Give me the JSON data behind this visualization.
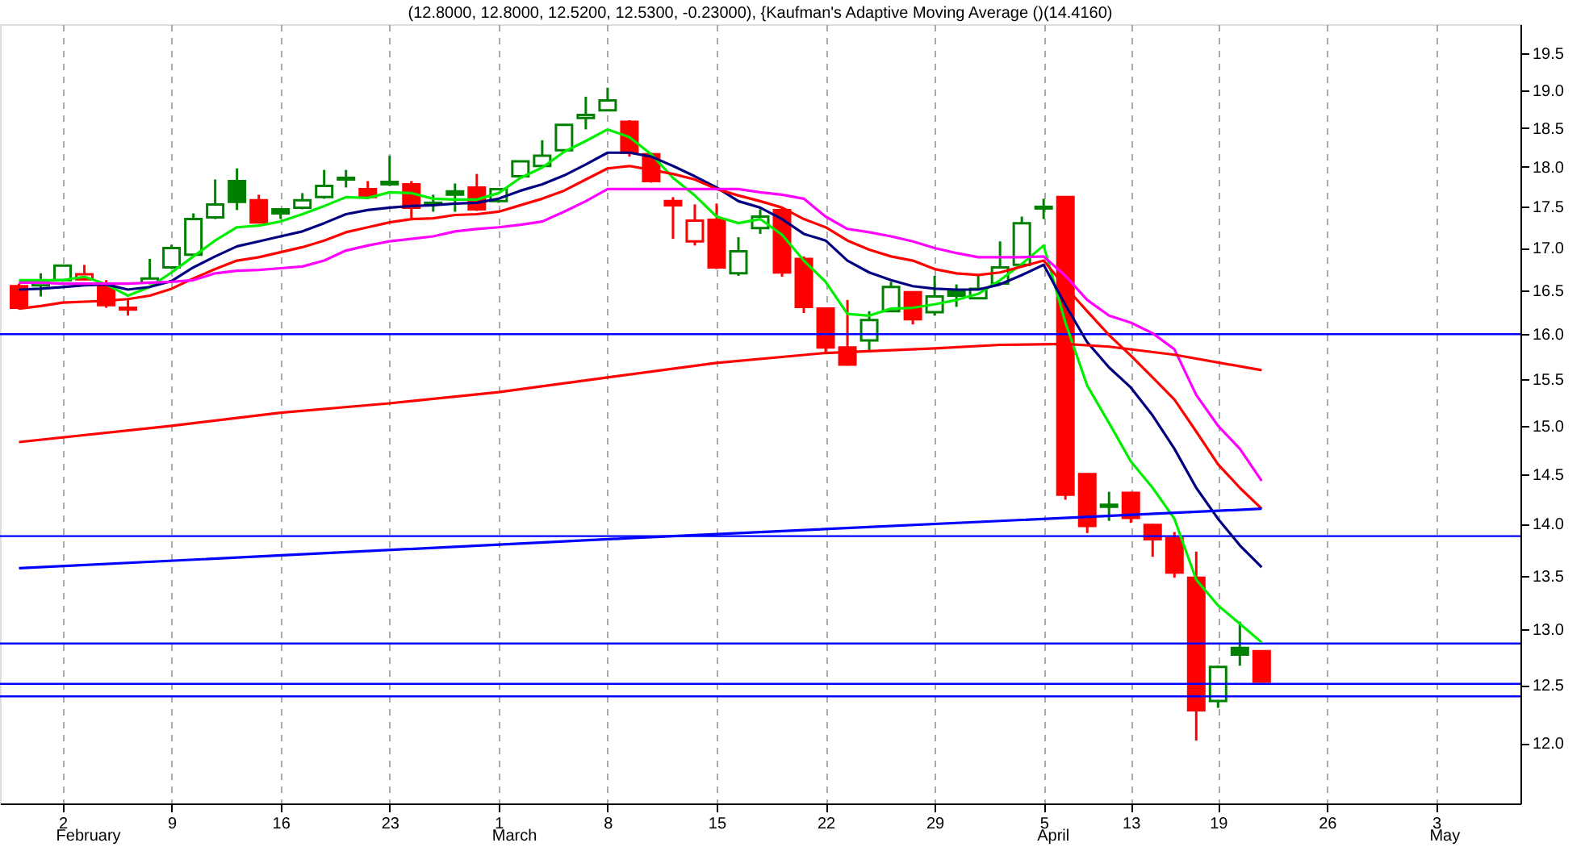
{
  "chart_data": {
    "type": "candlestick",
    "title": "(12.8000, 12.8000, 12.5200, 12.5300, -0.23000), {Kaufman's Adaptive Moving Average ()(14.4160)",
    "categories": [
      null,
      null,
      "2",
      null,
      null,
      null,
      null,
      "9",
      null,
      null,
      null,
      null,
      "16",
      null,
      null,
      null,
      null,
      "23",
      null,
      null,
      null,
      null,
      "1",
      null,
      null,
      null,
      null,
      "8",
      null,
      null,
      null,
      null,
      "15",
      null,
      null,
      null,
      null,
      "22",
      null,
      null,
      null,
      null,
      "29",
      null,
      null,
      null,
      null,
      "5",
      null,
      null,
      null,
      "13",
      null,
      null,
      null,
      "19",
      null,
      null,
      null,
      null,
      "26",
      null,
      null,
      null,
      null,
      "3",
      null,
      null,
      null
    ],
    "ohlc": [
      [
        16.55,
        16.58,
        16.28,
        16.3
      ],
      [
        16.56,
        16.7,
        16.43,
        16.6
      ],
      [
        16.62,
        16.8,
        16.6,
        16.79
      ],
      [
        16.63,
        16.8,
        16.62,
        16.69
      ],
      [
        16.55,
        16.62,
        16.3,
        16.33
      ],
      [
        16.3,
        16.41,
        16.21,
        16.28
      ],
      [
        16.59,
        16.87,
        16.57,
        16.64
      ],
      [
        16.77,
        17.04,
        16.75,
        17.0
      ],
      [
        16.92,
        17.42,
        16.9,
        17.35
      ],
      [
        17.37,
        17.84,
        17.35,
        17.53
      ],
      [
        17.82,
        17.98,
        17.46,
        17.56
      ],
      [
        17.58,
        17.65,
        17.3,
        17.31
      ],
      [
        17.47,
        17.48,
        17.35,
        17.42
      ],
      [
        17.49,
        17.67,
        17.47,
        17.58
      ],
      [
        17.62,
        17.96,
        17.6,
        17.76
      ],
      [
        17.84,
        17.96,
        17.74,
        17.86
      ],
      [
        17.72,
        17.82,
        17.6,
        17.62
      ],
      [
        17.78,
        18.14,
        17.76,
        17.81
      ],
      [
        17.78,
        17.82,
        17.36,
        17.49
      ],
      [
        17.53,
        17.65,
        17.44,
        17.55
      ],
      [
        17.69,
        17.79,
        17.44,
        17.65
      ],
      [
        17.74,
        17.91,
        17.45,
        17.47
      ],
      [
        17.57,
        17.73,
        17.55,
        17.72
      ],
      [
        17.88,
        18.08,
        17.85,
        18.07
      ],
      [
        18.01,
        18.34,
        17.98,
        18.14
      ],
      [
        18.21,
        18.55,
        18.2,
        18.54
      ],
      [
        18.63,
        18.91,
        18.48,
        18.67
      ],
      [
        18.73,
        19.03,
        18.72,
        18.86
      ],
      [
        18.58,
        18.6,
        18.13,
        18.18
      ],
      [
        18.16,
        18.18,
        17.8,
        17.82
      ],
      [
        17.57,
        17.62,
        17.11,
        17.52
      ],
      [
        17.08,
        17.53,
        17.03,
        17.33
      ],
      [
        17.34,
        17.54,
        16.75,
        16.77
      ],
      [
        16.7,
        17.13,
        16.67,
        16.96
      ],
      [
        17.24,
        17.47,
        17.17,
        17.38
      ],
      [
        17.46,
        17.48,
        16.66,
        16.71
      ],
      [
        16.87,
        16.9,
        16.24,
        16.31
      ],
      [
        16.29,
        16.3,
        15.8,
        15.85
      ],
      [
        15.85,
        16.39,
        15.65,
        15.66
      ],
      [
        15.93,
        16.26,
        15.81,
        16.16
      ],
      [
        16.26,
        16.6,
        16.25,
        16.54
      ],
      [
        16.48,
        16.49,
        16.11,
        16.17
      ],
      [
        16.25,
        16.67,
        16.21,
        16.43
      ],
      [
        16.5,
        16.57,
        16.31,
        16.44
      ],
      [
        16.41,
        16.68,
        16.4,
        16.52
      ],
      [
        16.58,
        17.08,
        16.57,
        16.77
      ],
      [
        16.8,
        17.38,
        16.78,
        17.3
      ],
      [
        17.48,
        17.6,
        17.35,
        17.5
      ],
      [
        17.62,
        17.63,
        14.24,
        14.29
      ],
      [
        14.5,
        14.5,
        13.91,
        13.98
      ],
      [
        14.17,
        14.32,
        14.03,
        14.19
      ],
      [
        14.31,
        14.32,
        14.01,
        14.06
      ],
      [
        13.99,
        14.0,
        13.68,
        13.85
      ],
      [
        13.86,
        13.92,
        13.48,
        13.53
      ],
      [
        13.48,
        13.73,
        12.02,
        12.28
      ],
      [
        12.36,
        12.67,
        12.3,
        12.66
      ],
      [
        12.83,
        13.07,
        12.67,
        12.77
      ],
      [
        12.8,
        12.8,
        12.52,
        12.53
      ],
      null,
      null,
      null,
      null,
      null,
      null,
      null,
      null,
      null,
      null,
      null
    ],
    "colors": [
      "#ff0000",
      "#008000",
      "#008000",
      "#ff0000",
      "#ff0000",
      "#ff0000",
      "#008000",
      "#008000",
      "#008000",
      "#008000",
      "#008000",
      "#ff0000",
      "#008000",
      "#008000",
      "#008000",
      "#008000",
      "#ff0000",
      "#008000",
      "#ff0000",
      "#008000",
      "#008000",
      "#ff0000",
      "#008000",
      "#008000",
      "#008000",
      "#008000",
      "#008000",
      "#008000",
      "#ff0000",
      "#ff0000",
      "#ff0000",
      "#ff0000",
      "#ff0000",
      "#008000",
      "#008000",
      "#ff0000",
      "#ff0000",
      "#ff0000",
      "#ff0000",
      "#008000",
      "#008000",
      "#ff0000",
      "#008000",
      "#008000",
      "#008000",
      "#008000",
      "#008000",
      "#008000",
      "#ff0000",
      "#ff0000",
      "#008000",
      "#ff0000",
      "#ff0000",
      "#ff0000",
      "#ff0000",
      "#008000",
      "#008000",
      "#ff0000",
      null,
      null,
      null,
      null,
      null,
      null,
      null,
      null,
      null,
      null,
      null
    ],
    "series": [
      {
        "type": "line",
        "color": "#00ee00",
        "values": [
          16.62,
          16.62,
          16.62,
          16.66,
          16.57,
          16.44,
          16.54,
          16.71,
          16.9,
          17.09,
          17.25,
          17.27,
          17.32,
          17.41,
          17.51,
          17.62,
          17.61,
          17.68,
          17.67,
          17.6,
          17.59,
          17.59,
          17.67,
          17.86,
          17.99,
          18.19,
          18.33,
          18.48,
          18.38,
          18.16,
          17.86,
          17.64,
          17.38,
          17.3,
          17.35,
          17.16,
          16.85,
          16.6,
          16.23,
          16.21,
          16.29,
          16.3,
          16.34,
          16.39,
          16.46,
          16.62,
          16.81,
          17.03,
          16.13,
          15.43,
          15.03,
          14.63,
          14.36,
          14.05,
          13.46,
          13.22,
          13.05,
          12.88,
          null,
          null,
          null,
          null,
          null,
          null,
          null,
          null,
          null,
          null,
          null
        ]
      },
      {
        "type": "line",
        "color": "#000080",
        "values": [
          16.51,
          16.52,
          16.54,
          16.56,
          16.57,
          16.51,
          16.54,
          16.61,
          16.77,
          16.9,
          17.02,
          17.08,
          17.14,
          17.2,
          17.3,
          17.41,
          17.46,
          17.49,
          17.51,
          17.52,
          17.54,
          17.55,
          17.6,
          17.7,
          17.78,
          17.89,
          18.03,
          18.18,
          18.18,
          18.13,
          18.01,
          17.88,
          17.74,
          17.57,
          17.49,
          17.35,
          17.17,
          17.09,
          16.85,
          16.71,
          16.62,
          16.55,
          16.52,
          16.51,
          16.51,
          16.57,
          16.68,
          16.8,
          16.33,
          15.91,
          15.63,
          15.41,
          15.11,
          14.76,
          14.36,
          14.05,
          13.79,
          13.58,
          null,
          null,
          null,
          null,
          null,
          null,
          null,
          null,
          null,
          null,
          null
        ]
      },
      {
        "type": "line",
        "color": "#ff0000",
        "values": [
          16.29,
          16.32,
          16.36,
          16.37,
          16.38,
          16.4,
          16.44,
          16.52,
          16.64,
          16.75,
          16.85,
          16.89,
          16.95,
          17.01,
          17.09,
          17.19,
          17.25,
          17.31,
          17.35,
          17.36,
          17.4,
          17.41,
          17.44,
          17.52,
          17.6,
          17.7,
          17.84,
          17.98,
          18.01,
          17.96,
          17.91,
          17.84,
          17.72,
          17.64,
          17.57,
          17.49,
          17.35,
          17.25,
          17.09,
          16.98,
          16.9,
          16.85,
          16.75,
          16.7,
          16.68,
          16.71,
          16.78,
          16.85,
          16.54,
          16.26,
          15.99,
          15.76,
          15.52,
          15.28,
          14.94,
          14.6,
          14.36,
          14.15,
          null,
          null,
          null,
          null,
          null,
          null,
          null,
          null,
          null,
          null,
          null
        ]
      },
      {
        "type": "line",
        "color": "#ff00ff",
        "values": [
          16.59,
          16.59,
          16.58,
          16.58,
          16.58,
          16.58,
          16.59,
          16.6,
          16.62,
          16.7,
          16.73,
          16.74,
          16.76,
          16.78,
          16.85,
          16.97,
          17.03,
          17.08,
          17.11,
          17.14,
          17.2,
          17.23,
          17.25,
          17.28,
          17.32,
          17.44,
          17.57,
          17.72,
          17.72,
          17.72,
          17.72,
          17.72,
          17.72,
          17.72,
          17.68,
          17.65,
          17.6,
          17.38,
          17.23,
          17.19,
          17.14,
          17.08,
          17.0,
          16.94,
          16.89,
          16.89,
          16.89,
          16.9,
          16.67,
          16.39,
          16.21,
          16.13,
          16.01,
          15.83,
          15.33,
          15.0,
          14.76,
          14.43,
          null,
          null,
          null,
          null,
          null,
          null,
          null,
          null,
          null,
          null,
          null
        ]
      },
      {
        "type": "line",
        "color": "#ff0000",
        "values": [
          14.83,
          null,
          null,
          null,
          null,
          null,
          null,
          15.0,
          null,
          null,
          null,
          null,
          15.14,
          null,
          null,
          null,
          null,
          15.24,
          null,
          null,
          null,
          null,
          15.36,
          null,
          null,
          null,
          null,
          15.52,
          null,
          null,
          null,
          null,
          15.68,
          null,
          null,
          null,
          null,
          15.79,
          null,
          null,
          null,
          null,
          15.84,
          null,
          null,
          15.88,
          null,
          null,
          15.89,
          null,
          15.86,
          null,
          null,
          15.77,
          null,
          null,
          null,
          15.6,
          null,
          null,
          null,
          null,
          null,
          null,
          null,
          null,
          null,
          null,
          null
        ]
      },
      {
        "type": "line",
        "color": "#0000ff",
        "values": [
          13.57,
          null,
          null,
          null,
          null,
          null,
          null,
          null,
          null,
          null,
          null,
          null,
          null,
          null,
          null,
          null,
          null,
          null,
          null,
          null,
          null,
          null,
          null,
          null,
          null,
          null,
          null,
          null,
          13.86,
          null,
          null,
          null,
          null,
          null,
          null,
          null,
          null,
          null,
          null,
          null,
          null,
          null,
          null,
          null,
          null,
          null,
          null,
          null,
          null,
          null,
          null,
          null,
          null,
          null,
          null,
          null,
          null,
          14.15,
          null,
          null,
          null,
          null,
          null,
          null,
          null,
          null,
          null,
          null,
          null
        ]
      }
    ],
    "ref_lines": [
      {
        "axis": "y",
        "value": 16.0,
        "color": "#0000ff"
      },
      {
        "axis": "y",
        "value": 13.88,
        "color": "#0000ff"
      },
      {
        "axis": "y",
        "value": 12.87,
        "color": "#0000ff"
      },
      {
        "axis": "y",
        "value": 12.51,
        "color": "#0000ff"
      },
      {
        "axis": "y",
        "value": 12.4,
        "color": "#0000ff"
      }
    ],
    "annotations": [
      "February",
      "March",
      "April",
      "May"
    ],
    "log": true,
    "ylim": [
      11.5,
      19.9
    ],
    "yticks": [
      {
        "value": 12,
        "label": "12.0"
      },
      {
        "value": 12.5,
        "label": "12.5"
      },
      {
        "value": 13,
        "label": "13.0"
      },
      {
        "value": 13.5,
        "label": "13.5"
      },
      {
        "value": 14,
        "label": "14.0"
      },
      {
        "value": 14.5,
        "label": "14.5"
      },
      {
        "value": 15,
        "label": "15.0"
      },
      {
        "value": 15.5,
        "label": "15.5"
      },
      {
        "value": 16,
        "label": "16.0"
      },
      {
        "value": 16.5,
        "label": "16.5"
      },
      {
        "value": 17,
        "label": "17.0"
      },
      {
        "value": 17.5,
        "label": "17.5"
      },
      {
        "value": 18,
        "label": "18.0"
      },
      {
        "value": 18.5,
        "label": "18.5"
      },
      {
        "value": 19,
        "label": "19.0"
      },
      {
        "value": 19.5,
        "label": "19.5"
      }
    ],
    "grid": "x"
  }
}
